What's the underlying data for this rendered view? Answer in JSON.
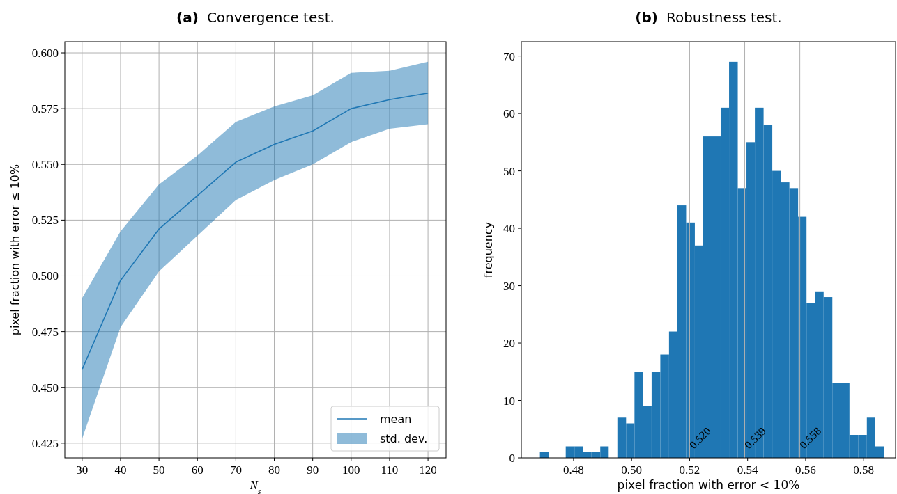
{
  "chart_data": [
    {
      "type": "line",
      "title": "(a) Convergence test.",
      "xlabel": "N$_{s}$",
      "ylabel": "pixel fraction with error ≤ 10%",
      "x": [
        30,
        40,
        50,
        60,
        70,
        80,
        90,
        100,
        110,
        120
      ],
      "series": [
        {
          "name": "mean",
          "type": "line",
          "color": "#1f77b4",
          "values": [
            0.458,
            0.498,
            0.521,
            0.536,
            0.551,
            0.559,
            0.565,
            0.575,
            0.579,
            0.582
          ],
          "upper": [
            0.49,
            0.52,
            0.541,
            0.554,
            0.569,
            0.576,
            0.581,
            0.591,
            0.592,
            0.596
          ],
          "lower": [
            0.427,
            0.477,
            0.502,
            0.518,
            0.534,
            0.543,
            0.55,
            0.56,
            0.566,
            0.568
          ]
        }
      ],
      "annotations": [
        "std. dev."
      ],
      "xlim": [
        25.5,
        124.7
      ],
      "xticks": [
        30,
        40,
        50,
        60,
        70,
        80,
        90,
        100,
        110,
        120
      ],
      "ylim": [
        0.4184,
        0.605
      ],
      "yticks": [
        {
          "value": 0.425,
          "label": "0.425"
        },
        {
          "value": 0.45,
          "label": "0.450"
        },
        {
          "value": 0.475,
          "label": "0.475"
        },
        {
          "value": 0.5,
          "label": "0.500"
        },
        {
          "value": 0.525,
          "label": "0.525"
        },
        {
          "value": 0.55,
          "label": "0.550"
        },
        {
          "value": 0.575,
          "label": "0.575"
        },
        {
          "value": 0.6,
          "label": "0.600"
        }
      ],
      "grid": true,
      "legend": "bottom right"
    },
    {
      "type": "histogram",
      "title": "(b) Robustness test.",
      "xlabel": "pixel fraction with error < 10%",
      "ylabel": "frequency",
      "color": "#1f77b4",
      "bins": [
        0.4684,
        0.4714,
        0.4743,
        0.4773,
        0.4803,
        0.4832,
        0.4862,
        0.4892,
        0.4921,
        0.4951,
        0.4981,
        0.501,
        0.504,
        0.5069,
        0.5099,
        0.5129,
        0.5158,
        0.5188,
        0.5218,
        0.5247,
        0.5277,
        0.5307,
        0.5336,
        0.5366,
        0.5396,
        0.5425,
        0.5455,
        0.5485,
        0.5514,
        0.5544,
        0.5574,
        0.5603,
        0.5633,
        0.5662,
        0.5692,
        0.5722,
        0.5751,
        0.5781,
        0.5811,
        0.584,
        0.587
      ],
      "values": [
        1,
        0,
        0,
        2,
        2,
        1,
        1,
        2,
        0,
        7,
        6,
        15,
        9,
        15,
        18,
        22,
        44,
        41,
        37,
        56,
        56,
        61,
        69,
        47,
        55,
        61,
        58,
        50,
        48,
        47,
        42,
        27,
        29,
        28,
        13,
        13,
        4,
        4,
        7,
        2
      ],
      "xlim": [
        0.462,
        0.591
      ],
      "xticks": [
        {
          "value": 0.48,
          "label": "0.48"
        },
        {
          "value": 0.5,
          "label": "0.50"
        },
        {
          "value": 0.52,
          "label": "0.52"
        },
        {
          "value": 0.54,
          "label": "0.54"
        },
        {
          "value": 0.56,
          "label": "0.56"
        },
        {
          "value": 0.58,
          "label": "0.58"
        }
      ],
      "ylim": [
        0,
        72.5
      ],
      "yticks": [
        0,
        10,
        20,
        30,
        40,
        50,
        60,
        70
      ],
      "ref_lines": [
        {
          "axis": "x",
          "value": 0.52,
          "label": "0.520",
          "color": "#b0b0b0"
        },
        {
          "axis": "x",
          "value": 0.539,
          "label": "0.539",
          "color": "#b0b0b0"
        },
        {
          "axis": "x",
          "value": 0.558,
          "label": "0.558",
          "color": "#b0b0b0"
        }
      ]
    }
  ]
}
